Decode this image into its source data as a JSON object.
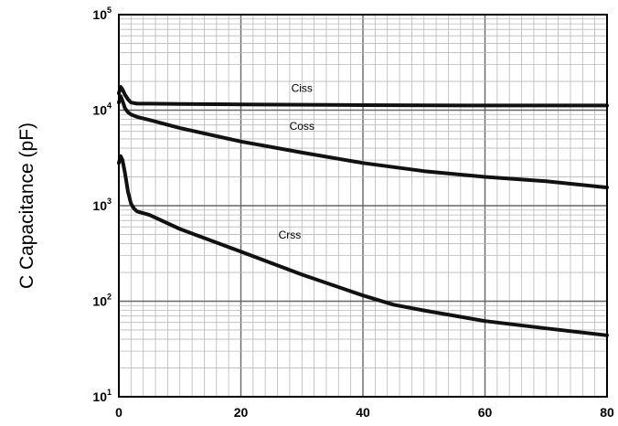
{
  "chart_data": {
    "type": "line",
    "ylabel": "C Capacitance (pF)",
    "xlabel": "",
    "title": "",
    "xlim": [
      0,
      80
    ],
    "ylim": [
      10,
      100000
    ],
    "yscale": "log",
    "grid": true,
    "x_ticks": [
      "0",
      "20",
      "40",
      "60",
      "80"
    ],
    "y_ticks": [
      {
        "base": "10",
        "exp": "1"
      },
      {
        "base": "10",
        "exp": "2"
      },
      {
        "base": "10",
        "exp": "3"
      },
      {
        "base": "10",
        "exp": "4"
      },
      {
        "base": "10",
        "exp": "5"
      }
    ],
    "series": [
      {
        "name": "Ciss",
        "color": "#111111",
        "x": [
          0,
          0.3,
          0.6,
          1,
          1.5,
          2,
          3,
          5,
          10,
          20,
          40,
          60,
          80
        ],
        "y": [
          15000,
          17500,
          16500,
          14500,
          13000,
          12000,
          11700,
          11700,
          11600,
          11500,
          11300,
          11200,
          11200
        ]
      },
      {
        "name": "Coss",
        "color": "#111111",
        "x": [
          0,
          0.3,
          0.6,
          1,
          1.5,
          2,
          3,
          5,
          10,
          20,
          30,
          40,
          50,
          60,
          70,
          80
        ],
        "y": [
          12000,
          14000,
          12500,
          10500,
          9500,
          9000,
          8500,
          7900,
          6500,
          4700,
          3600,
          2800,
          2300,
          2000,
          1800,
          1550
        ]
      },
      {
        "name": "Crss",
        "color": "#111111",
        "x": [
          0,
          0.3,
          0.6,
          1,
          1.5,
          2,
          2.5,
          3,
          5,
          10,
          20,
          30,
          40,
          45,
          50,
          60,
          70,
          80
        ],
        "y": [
          2800,
          3300,
          3000,
          2200,
          1400,
          1050,
          930,
          870,
          800,
          570,
          330,
          190,
          115,
          92,
          80,
          62,
          52,
          44
        ]
      }
    ]
  }
}
